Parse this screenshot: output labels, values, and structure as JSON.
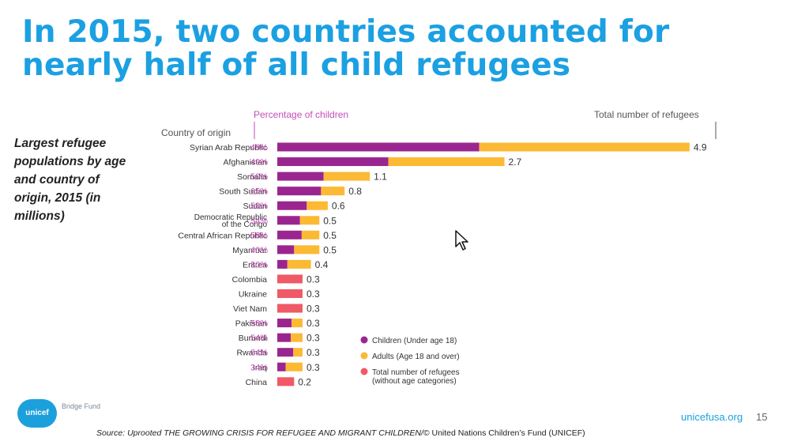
{
  "title": "In 2015, two countries accounted for nearly half of all child refugees",
  "side_caption": "Largest refugee populations by age and country of origin, 2015 (in millions)",
  "footer": {
    "logo_text": "unicef",
    "logo_sub": "Bridge Fund",
    "site": "unicefusa.org",
    "page": "15",
    "source_italic": "Source: Uprooted THE GROWING CRISIS FOR REFUGEE AND MIGRANT CHILDREN/",
    "source_plain": "© United Nations Children’s Fund (UNICEF)"
  },
  "colors": {
    "children": "#9b2590",
    "adults": "#fbb934",
    "total": "#ef5a66",
    "title": "#1ba0e2",
    "pct": "#c64cb8"
  },
  "chart_data": {
    "type": "bar",
    "orientation": "horizontal",
    "stacked": true,
    "units": "millions",
    "header_left": "Country of origin",
    "header_pct": "Percentage of children",
    "header_total": "Total number of refugees",
    "categories": [
      "Syrian Arab Republic",
      "Afghanistan",
      "Somalia",
      "South Sudan",
      "Sudan",
      "Democratic Republic of the Congo",
      "Central African Republic",
      "Myanmar",
      "Eritrea",
      "Colombia",
      "Ukraine",
      "Viet Nam",
      "Pakistan",
      "Burundi",
      "Rwanda",
      "Iraq",
      "China"
    ],
    "category_lines": [
      [
        "Syrian Arab Republic"
      ],
      [
        "Afghanistan"
      ],
      [
        "Somalia"
      ],
      [
        "South Sudan"
      ],
      [
        "Sudan"
      ],
      [
        "Democratic Republic",
        "of the Congo"
      ],
      [
        "Central African Republic"
      ],
      [
        "Myanmar"
      ],
      [
        "Eritrea"
      ],
      [
        "Colombia"
      ],
      [
        "Ukraine"
      ],
      [
        "Viet Nam"
      ],
      [
        "Pakistan"
      ],
      [
        "Burundi"
      ],
      [
        "Rwanda"
      ],
      [
        "Iraq"
      ],
      [
        "China"
      ]
    ],
    "percent_children": [
      "49%",
      "49%",
      "50%",
      "65%",
      "58%",
      "54%",
      "58%",
      "40%",
      "30%",
      "",
      "",
      "",
      "58%",
      "54%",
      "64%",
      "34%",
      ""
    ],
    "totals": [
      4.9,
      2.7,
      1.1,
      0.8,
      0.6,
      0.5,
      0.5,
      0.5,
      0.4,
      0.3,
      0.3,
      0.3,
      0.3,
      0.3,
      0.3,
      0.3,
      0.2
    ],
    "total_labels": [
      "4.9",
      "2.7",
      "1.1",
      "0.8",
      "0.6",
      "0.5",
      "0.5",
      "0.5",
      "0.4",
      "0.3",
      "0.3",
      "0.3",
      "0.3",
      "0.3",
      "0.3",
      "0.3",
      "0.2"
    ],
    "series": [
      {
        "name": "Children (Under age 18)",
        "key": "children",
        "values": [
          2.4,
          1.32,
          0.55,
          0.52,
          0.35,
          0.27,
          0.29,
          0.2,
          0.12,
          null,
          null,
          null,
          0.17,
          0.16,
          0.19,
          0.1,
          null
        ]
      },
      {
        "name": "Adults (Age 18 and over)",
        "key": "adults",
        "values": [
          2.5,
          1.38,
          0.55,
          0.28,
          0.25,
          0.23,
          0.21,
          0.3,
          0.28,
          null,
          null,
          null,
          0.13,
          0.14,
          0.11,
          0.2,
          null
        ]
      },
      {
        "name": "Total number of refugees",
        "key": "total",
        "values": [
          null,
          null,
          null,
          null,
          null,
          null,
          null,
          null,
          null,
          0.3,
          0.3,
          0.3,
          null,
          null,
          null,
          null,
          0.2
        ]
      }
    ],
    "legend": [
      {
        "lines": [
          "Children (Under age 18)"
        ],
        "key": "children"
      },
      {
        "lines": [
          "Adults (Age 18 and over)"
        ],
        "key": "adults"
      },
      {
        "lines": [
          "Total number of refugees",
          "(without age categories)"
        ],
        "key": "total"
      }
    ],
    "legend_position": "bottom-center",
    "grid": false
  }
}
